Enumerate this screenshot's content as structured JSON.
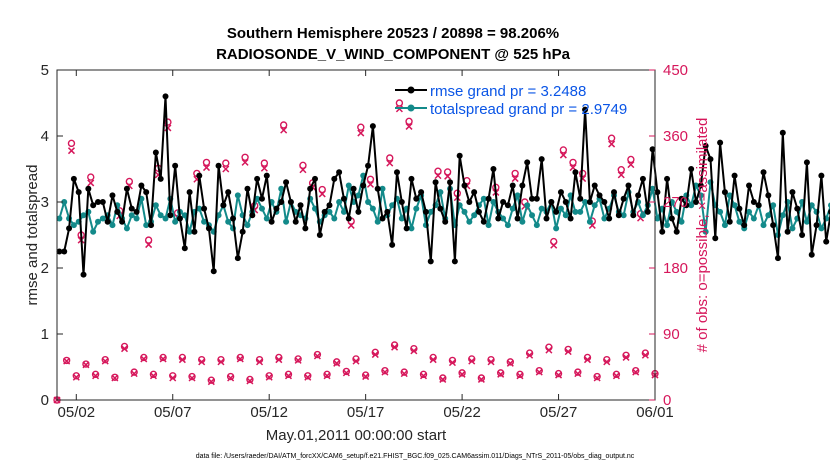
{
  "chart_data": {
    "type": "line",
    "title": [
      "Southern Hemisphere 20523 / 20898 = 98.206%",
      "RADIOSONDE_V_WIND_COMPONENT @ 525 hPa"
    ],
    "xlabel": "May.01,2011 00:00:00 start",
    "ylabel_left": "rmse and totalspread",
    "ylabel_right": "# of obs: o=possible; ×=assimilated",
    "footnote": "data file: /Users/raeder/DAI/ATM_forcXX/CAM6_setup/f.e21.FHIST_BGC.f09_025.CAM6assim.011/Diags_NTrS_2011-05/obs_diag_output.nc",
    "xlim": [
      0.5,
      31.5
    ],
    "ylim_left": [
      0,
      5
    ],
    "ylim_right": [
      0,
      450
    ],
    "xticks": [
      1.5,
      6.5,
      11.5,
      16.5,
      21.5,
      26.5,
      31.5
    ],
    "xtick_labels": [
      "05/02",
      "05/07",
      "05/12",
      "05/17",
      "05/22",
      "05/27",
      "06/01"
    ],
    "yticks_left": [
      "0",
      "1",
      "2",
      "3",
      "4",
      "5"
    ],
    "yticks_right": [
      "0",
      "90",
      "180",
      "270",
      "360",
      "450"
    ],
    "colors": {
      "rmse": "#000000",
      "spread": "#138a8a",
      "obs": "#d6175b",
      "legend_text": "#0a55e6"
    },
    "legend": [
      {
        "name": "rmse grand pr = 3.2488",
        "color": "#000000"
      },
      {
        "name": "totalspread grand pr = 2.9749",
        "color": "#138a8a"
      }
    ],
    "series": [
      {
        "name": "rmse",
        "x_start": 0.625,
        "x_step": 0.25,
        "values": [
          2.25,
          2.25,
          2.6,
          3.35,
          3.15,
          1.9,
          3.2,
          2.95,
          3.0,
          3.0,
          2.7,
          3.1,
          2.85,
          2.7,
          3.2,
          2.9,
          2.85,
          3.25,
          3.15,
          2.65,
          3.75,
          3.35,
          4.6,
          2.8,
          3.55,
          2.75,
          2.3,
          3.15,
          2.55,
          3.4,
          2.9,
          2.6,
          1.95,
          3.55,
          2.95,
          3.15,
          2.75,
          2.15,
          2.55,
          3.2,
          2.8,
          3.35,
          3.05,
          3.4,
          2.7,
          2.9,
          3.0,
          3.3,
          3.0,
          2.7,
          2.95,
          2.6,
          3.2,
          3.35,
          2.5,
          2.85,
          2.95,
          3.35,
          3.45,
          3.05,
          2.75,
          3.2,
          2.85,
          3.25,
          3.55,
          4.15,
          3.2,
          2.75,
          2.85,
          2.35,
          3.45,
          3.0,
          2.6,
          3.35,
          3.05,
          3.15,
          2.85,
          2.1,
          3.3,
          2.9,
          2.7,
          3.3,
          2.1,
          3.7,
          3.25,
          3.0,
          3.15,
          2.85,
          2.7,
          3.05,
          3.5,
          2.75,
          3.0,
          2.95,
          3.25,
          2.75,
          3.25,
          3.6,
          3.05,
          3.05,
          3.65,
          2.75,
          3.0,
          2.85,
          3.15,
          3.0,
          2.75,
          3.45,
          3.05,
          4.4,
          3.0,
          3.25,
          3.1,
          3.0,
          2.75,
          3.15,
          2.8,
          3.05,
          3.25,
          2.8,
          3.1,
          3.35,
          2.85,
          3.8,
          3.15,
          2.55,
          3.35,
          2.75,
          2.55,
          3.05,
          2.95,
          3.5,
          3.0,
          3.25,
          3.85,
          3.65,
          2.45,
          3.9,
          3.15,
          2.7,
          3.4,
          2.9,
          2.65,
          3.25,
          3.0,
          2.95,
          3.45,
          3.1,
          2.65,
          2.15,
          4.05,
          2.55,
          3.15,
          2.9,
          2.5,
          3.6,
          2.2,
          2.65,
          3.4,
          2.4,
          2.85,
          3.55,
          3.1,
          2.55,
          3.55,
          2.95,
          2.5,
          2.65,
          3.2,
          2.35,
          3.35,
          2.55,
          3.45,
          2.75,
          2.65,
          3.5,
          2.9,
          3.05,
          2.75,
          2.6,
          3.15,
          2.5,
          2.4,
          3.5,
          3.0
        ]
      },
      {
        "name": "totalspread",
        "x_start": 0.625,
        "x_step": 0.25,
        "values": [
          2.75,
          3.0,
          2.75,
          2.65,
          2.7,
          2.8,
          2.85,
          2.55,
          2.7,
          2.75,
          2.8,
          2.65,
          2.95,
          2.75,
          2.6,
          2.8,
          2.75,
          3.05,
          2.65,
          2.7,
          2.95,
          2.8,
          2.75,
          3.05,
          2.7,
          2.85,
          2.8,
          2.55,
          2.85,
          2.9,
          2.7,
          2.65,
          2.55,
          2.8,
          2.95,
          2.7,
          2.6,
          3.1,
          2.8,
          2.65,
          2.85,
          3.05,
          2.9,
          2.75,
          3.0,
          2.85,
          3.2,
          2.7,
          3.0,
          2.85,
          2.8,
          2.75,
          3.05,
          2.9,
          2.7,
          2.8,
          2.85,
          2.75,
          3.0,
          2.85,
          3.25,
          3.0,
          3.1,
          3.4,
          3.0,
          2.9,
          2.7,
          3.2,
          2.8,
          2.95,
          3.05,
          2.75,
          2.9,
          2.6,
          2.9,
          3.1,
          2.65,
          2.85,
          2.95,
          3.15,
          2.75,
          3.2,
          2.65,
          2.95,
          2.85,
          2.7,
          2.8,
          2.95,
          3.05,
          2.65,
          3.0,
          2.85,
          2.75,
          2.65,
          2.9,
          3.1,
          2.7,
          2.95,
          2.8,
          2.65,
          2.9,
          2.85,
          3.0,
          2.6,
          2.9,
          2.8,
          3.1,
          2.85,
          2.85,
          3.0,
          2.7,
          2.95,
          3.05,
          2.75,
          2.9,
          3.1,
          2.85,
          2.8,
          3.15,
          2.85,
          3.0,
          2.8,
          2.95,
          3.2,
          2.75,
          2.9,
          2.65,
          3.0,
          2.85,
          2.7,
          3.1,
          2.95,
          3.25,
          3.1,
          2.55,
          3.3,
          2.95,
          2.85,
          2.65,
          3.1,
          2.95,
          2.7,
          2.6,
          2.85,
          2.75,
          2.95,
          2.65,
          2.8,
          2.95,
          2.5,
          2.8,
          3.0,
          2.6,
          2.75,
          3.0,
          2.7,
          2.95,
          2.85,
          2.6,
          2.75,
          2.95,
          2.65,
          2.55,
          2.9,
          2.75,
          3.05,
          2.6,
          2.85,
          3.0,
          2.7,
          2.9,
          2.6,
          2.75,
          3.05,
          2.85,
          2.65,
          3.2,
          2.9,
          3.0,
          2.4,
          3.0,
          2.95,
          3.05
        ]
      },
      {
        "name": "obs possible",
        "x_start": 0.5,
        "x_step": 0.5,
        "values": [
          0,
          54,
          33,
          49,
          35,
          55,
          31,
          73,
          38,
          58,
          35,
          58,
          33,
          58,
          32,
          55,
          27,
          55,
          32,
          58,
          28,
          55,
          33,
          58,
          35,
          56,
          33,
          62,
          35,
          52,
          39,
          56,
          34,
          65,
          40,
          75,
          38,
          70,
          35,
          58,
          30,
          54,
          37,
          56,
          30,
          55,
          37,
          52,
          35,
          64,
          40,
          72,
          36,
          69,
          38,
          58,
          32,
          55,
          35,
          61,
          40,
          64,
          36
        ]
      },
      {
        "name": "obs assimilated",
        "x_start": 0.5,
        "x_step": 0.5,
        "values": [
          0,
          53,
          31,
          48,
          33,
          53,
          30,
          70,
          36,
          56,
          33,
          56,
          30,
          55,
          30,
          52,
          25,
          52,
          30,
          56,
          26,
          52,
          31,
          55,
          33,
          54,
          31,
          60,
          33,
          50,
          37,
          53,
          32,
          62,
          38,
          72,
          36,
          67,
          33,
          55,
          28,
          51,
          35,
          53,
          28,
          52,
          35,
          50,
          33,
          61,
          38,
          68,
          34,
          66,
          36,
          55,
          30,
          52,
          33,
          58,
          38,
          61,
          34
        ]
      },
      {
        "name": "obs possible upper",
        "x": [
          1.25,
          1.75,
          2.25,
          3.75,
          4.25,
          5.25,
          5.75,
          6.25,
          6.75,
          7.75,
          8.25,
          9.25,
          10.25,
          10.75,
          11.25,
          12.25,
          13.25,
          13.75,
          14.25,
          15.75,
          16.25,
          16.75,
          17.75,
          18.25,
          18.75,
          20.25,
          20.75,
          21.25,
          21.75,
          23.25,
          24.25,
          24.75,
          26.25,
          26.75,
          27.25,
          27.75,
          28.25,
          29.25,
          29.75,
          30.25,
          30.75
        ],
        "values": [
          350,
          225,
          304,
          258,
          298,
          218,
          316,
          379,
          255,
          309,
          324,
          323,
          331,
          265,
          323,
          375,
          320,
          296,
          287,
          244,
          372,
          301,
          330,
          405,
          380,
          312,
          311,
          282,
          299,
          290,
          309,
          270,
          216,
          341,
          324,
          309,
          244,
          357,
          314,
          328,
          254
        ]
      },
      {
        "name": "obs assimilated upper",
        "x": [
          1.25,
          1.75,
          2.25,
          3.75,
          4.25,
          5.25,
          5.75,
          6.25,
          6.75,
          7.75,
          8.25,
          9.25,
          10.25,
          10.75,
          11.25,
          12.25,
          13.25,
          13.75,
          14.25,
          15.75,
          16.25,
          16.75,
          17.75,
          18.25,
          18.75,
          20.25,
          20.75,
          21.25,
          21.75,
          23.25,
          24.25,
          24.75,
          26.25,
          26.75,
          27.25,
          27.75,
          28.25,
          29.25,
          29.75,
          30.25,
          30.75
        ],
        "values": [
          340,
          218,
          296,
          251,
          292,
          212,
          307,
          371,
          249,
          301,
          317,
          315,
          324,
          259,
          316,
          368,
          314,
          290,
          281,
          238,
          364,
          294,
          323,
          397,
          373,
          306,
          305,
          276,
          292,
          283,
          302,
          264,
          211,
          334,
          317,
          302,
          238,
          349,
          307,
          321,
          248
        ]
      }
    ]
  }
}
